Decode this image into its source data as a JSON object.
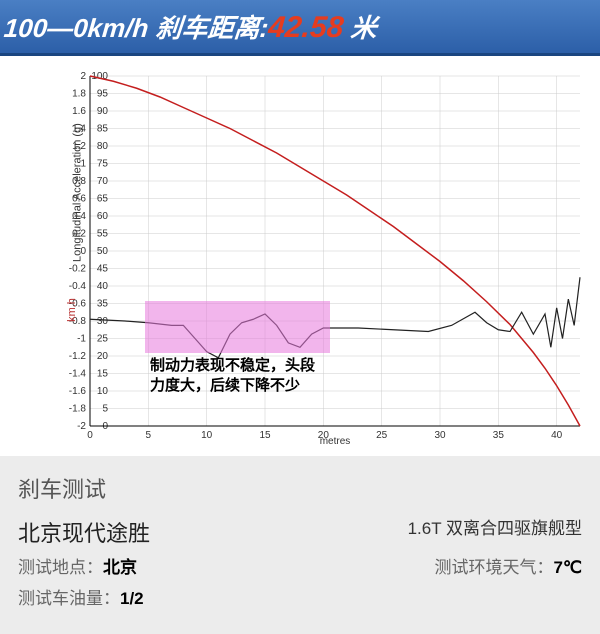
{
  "header": {
    "prefix": "100—0km/h 刹车距离:",
    "value": "42.58",
    "suffix": " 米"
  },
  "chart": {
    "type": "line",
    "background_color": "#ffffff",
    "grid_color": "#cccccc",
    "y1_axis": {
      "label": "Longitudinal Acceleration (g)",
      "min": -2.0,
      "max": 2.0,
      "step": 0.2,
      "ticks": [
        "2",
        "1.8",
        "1.6",
        "1.4",
        "1.2",
        "1",
        "0.8",
        "0.6",
        "0.4",
        "0.2",
        "0",
        "-0.2",
        "-0.4",
        "-0.6",
        "-0.8",
        "-1",
        "-1.2",
        "-1.4",
        "-1.6",
        "-1.8",
        "-2"
      ]
    },
    "y2_axis": {
      "label": "km.h",
      "min": 0,
      "max": 100,
      "step": 5,
      "color": "#b83030",
      "ticks": [
        "100",
        "95",
        "90",
        "85",
        "80",
        "75",
        "70",
        "65",
        "60",
        "55",
        "50",
        "45",
        "40",
        "35",
        "30",
        "25",
        "20",
        "15",
        "10",
        "5",
        "0"
      ]
    },
    "x_axis": {
      "label": "metres",
      "min": 0,
      "max": 42,
      "step": 5,
      "ticks": [
        "0",
        "5",
        "10",
        "15",
        "20",
        "25",
        "30",
        "35",
        "40"
      ]
    },
    "red_series": {
      "color": "#c41e1e",
      "points": [
        [
          0,
          100
        ],
        [
          2,
          98.5
        ],
        [
          4,
          96.5
        ],
        [
          6,
          94
        ],
        [
          8,
          91
        ],
        [
          10,
          88
        ],
        [
          12,
          85
        ],
        [
          14,
          81.5
        ],
        [
          16,
          78
        ],
        [
          18,
          74
        ],
        [
          20,
          70
        ],
        [
          22,
          66
        ],
        [
          24,
          61.5
        ],
        [
          26,
          57
        ],
        [
          28,
          52
        ],
        [
          30,
          47
        ],
        [
          32,
          41.5
        ],
        [
          34,
          35.5
        ],
        [
          36,
          29
        ],
        [
          37,
          25
        ],
        [
          38,
          21
        ],
        [
          39,
          16.5
        ],
        [
          40,
          11.5
        ],
        [
          41,
          6
        ],
        [
          42,
          0
        ]
      ]
    },
    "black_series": {
      "color": "#222222",
      "g_points": [
        [
          0,
          -0.78
        ],
        [
          3,
          -0.8
        ],
        [
          5,
          -0.82
        ],
        [
          7,
          -0.85
        ],
        [
          8,
          -0.85
        ],
        [
          9,
          -1.0
        ],
        [
          10,
          -1.15
        ],
        [
          11,
          -1.22
        ],
        [
          12,
          -0.95
        ],
        [
          13,
          -0.82
        ],
        [
          14,
          -0.78
        ],
        [
          15,
          -0.72
        ],
        [
          16,
          -0.85
        ],
        [
          17,
          -1.05
        ],
        [
          18,
          -1.1
        ],
        [
          19,
          -0.95
        ],
        [
          20,
          -0.88
        ],
        [
          23,
          -0.88
        ],
        [
          26,
          -0.9
        ],
        [
          29,
          -0.92
        ],
        [
          31,
          -0.85
        ],
        [
          33,
          -0.7
        ],
        [
          34,
          -0.82
        ],
        [
          35,
          -0.9
        ],
        [
          36,
          -0.92
        ],
        [
          37,
          -0.7
        ],
        [
          38,
          -0.95
        ],
        [
          39,
          -0.72
        ],
        [
          39.5,
          -1.1
        ],
        [
          40,
          -0.65
        ],
        [
          40.5,
          -1.0
        ],
        [
          41,
          -0.55
        ],
        [
          41.5,
          -0.85
        ],
        [
          42,
          -0.3
        ]
      ]
    },
    "annotation": {
      "box_color": "rgba(232,120,220,0.55)",
      "text_line1": "制动力表现不稳定，头段",
      "text_line2": "力度大，后续下降不少"
    }
  },
  "info": {
    "title": "刹车测试",
    "car": "北京现代途胜",
    "variant": "1.6T 双离合四驱旗舰型",
    "location_label": "测试地点：",
    "location": "北京",
    "weather_label": "测试环境天气：",
    "weather": "7℃",
    "fuel_label": "测试车油量：",
    "fuel": "1/2"
  }
}
